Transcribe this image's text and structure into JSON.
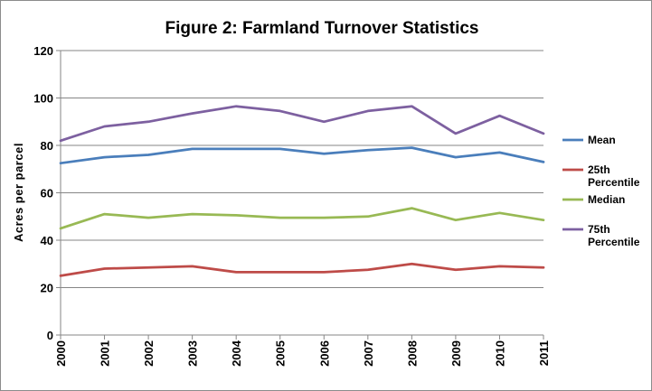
{
  "chart_data": {
    "type": "line",
    "title": "Figure 2: Farmland Turnover Statistics",
    "xlabel": "",
    "ylabel": "Acres per parcel",
    "x": [
      "2000",
      "2001",
      "2002",
      "2003",
      "2004",
      "2005",
      "2006",
      "2007",
      "2008",
      "2009",
      "2010",
      "2011"
    ],
    "ylim": [
      0,
      120
    ],
    "yticks": [
      0,
      20,
      40,
      60,
      80,
      100,
      120
    ],
    "grid": true,
    "legend_position": "right",
    "series": [
      {
        "name": "Mean",
        "color": "#4a7ebb",
        "values": [
          72.5,
          75,
          76,
          78.5,
          78.5,
          78.5,
          76.5,
          78,
          79,
          75,
          77,
          73
        ]
      },
      {
        "name": "25th Percentile",
        "color": "#be4b48",
        "values": [
          25,
          28,
          28.5,
          29,
          26.5,
          26.5,
          26.5,
          27.5,
          30,
          27.5,
          29,
          28.5
        ]
      },
      {
        "name": "Median",
        "color": "#98b954",
        "values": [
          45,
          51,
          49.5,
          51,
          50.5,
          49.5,
          49.5,
          50,
          53.5,
          48.5,
          51.5,
          48.5
        ]
      },
      {
        "name": "75th Percentile",
        "color": "#7d60a0",
        "values": [
          82,
          88,
          90,
          93.5,
          96.5,
          94.5,
          90,
          94.5,
          96.5,
          85,
          92.5,
          85
        ]
      }
    ]
  }
}
